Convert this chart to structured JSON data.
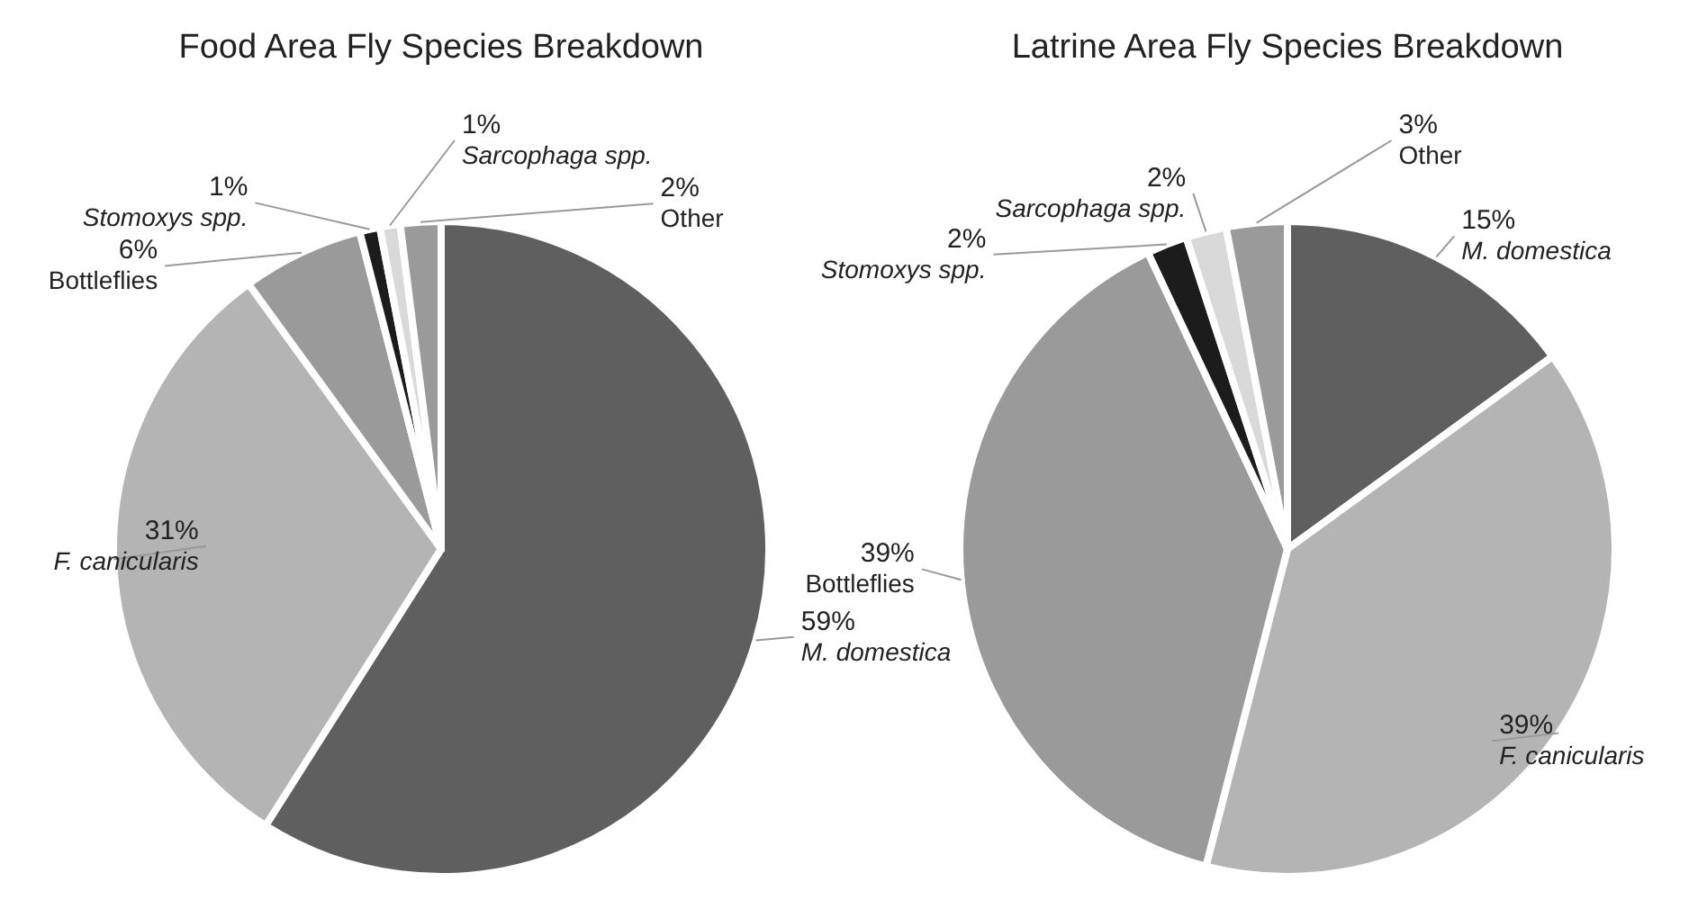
{
  "chart_data": [
    {
      "type": "pie",
      "title": "Food Area Fly Species Breakdown",
      "categories": [
        "M. domestica",
        "F. canicularis",
        "Bottleflies",
        "Stomoxys spp.",
        "Sarcophaga spp.",
        "Other"
      ],
      "values": [
        59,
        31,
        6,
        1,
        1,
        2
      ],
      "value_labels": [
        "59%",
        "31%",
        "6%",
        "1%",
        "1%",
        "2%"
      ],
      "colors": [
        "#5f5f5f",
        "#b4b4b4",
        "#9a9a9a",
        "#1c1c1c",
        "#d9d9d9",
        "#9a9a9a"
      ]
    },
    {
      "type": "pie",
      "title": "Latrine Area Fly Species Breakdown",
      "categories": [
        "M. domestica",
        "F. canicularis",
        "Bottleflies",
        "Stomoxys spp.",
        "Sarcophaga spp.",
        "Other"
      ],
      "values": [
        15,
        39,
        39,
        2,
        2,
        3
      ],
      "value_labels": [
        "15%",
        "39%",
        "39%",
        "2%",
        "2%",
        "3%"
      ],
      "colors": [
        "#5f5f5f",
        "#b4b4b4",
        "#9a9a9a",
        "#1c1c1c",
        "#d9d9d9",
        "#9a9a9a"
      ]
    }
  ]
}
